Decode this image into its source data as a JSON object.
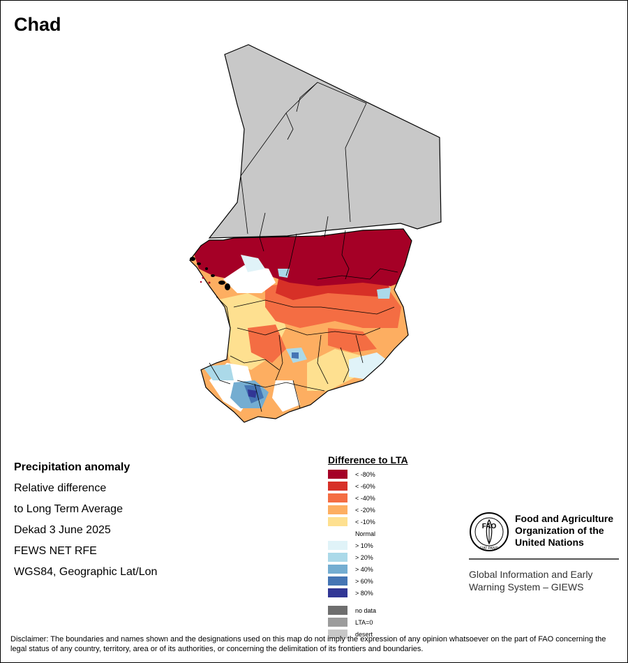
{
  "title": "Chad",
  "info": {
    "line1": "Precipitation anomaly",
    "line2": "Relative difference",
    "line3": "to Long Term Average",
    "line4": "Dekad 3 June 2025",
    "line5": "FEWS NET RFE",
    "line6": "WGS84, Geographic Lat/Lon"
  },
  "legend": {
    "title": "Difference to LTA",
    "anomaly_classes": [
      {
        "label": "< -80%",
        "color": "#a50026"
      },
      {
        "label": "< -60%",
        "color": "#d73027"
      },
      {
        "label": "< -40%",
        "color": "#f46d43"
      },
      {
        "label": "< -20%",
        "color": "#fdae61"
      },
      {
        "label": "< -10%",
        "color": "#fee090"
      },
      {
        "label": "Normal",
        "color": "#ffffff"
      },
      {
        "label": "> 10%",
        "color": "#e0f3f8"
      },
      {
        "label": "> 20%",
        "color": "#abd9e9"
      },
      {
        "label": "> 40%",
        "color": "#74add1"
      },
      {
        "label": "> 60%",
        "color": "#4575b4"
      },
      {
        "label": "> 80%",
        "color": "#313695"
      }
    ],
    "other_classes": [
      {
        "label": "no data",
        "color": "#6e6e6e"
      },
      {
        "label": "LTA=0",
        "color": "#9c9c9c"
      },
      {
        "label": "desert",
        "color": "#c8c8c8"
      }
    ]
  },
  "fao": {
    "name_line1": "Food and Agriculture",
    "name_line2": "Organization of the",
    "name_line3": "United Nations",
    "emblem_letters": "FAO",
    "emblem_motto": "FIAT PANIS",
    "system_line1": "Global Information and Early",
    "system_line2": "Warning System – GIEWS"
  },
  "disclaimer": "Disclaimer: The boundaries and names shown and the designations used on this map do not imply the expression of any opinion whatsoever on the part of FAO concerning the legal status of any country, territory, area or of its authorities, or concerning the delimitation of its frontiers and boundaries."
}
